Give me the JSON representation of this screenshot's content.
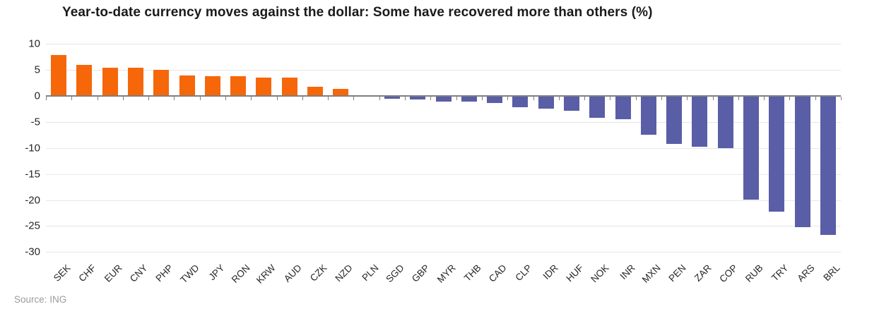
{
  "header": {
    "title": "Year-to-date currency moves against the dollar: Some have recovered more than others (%)"
  },
  "footer": {
    "source": "Source: ING"
  },
  "chart_data": {
    "type": "bar",
    "title": "Year-to-date currency moves against the dollar: Some have recovered more than others (%)",
    "xlabel": "",
    "ylabel": "",
    "categories": [
      "SEK",
      "CHF",
      "EUR",
      "CNY",
      "PHP",
      "TWD",
      "JPY",
      "RON",
      "KRW",
      "AUD",
      "CZK",
      "NZD",
      "PLN",
      "SGD",
      "GBP",
      "MYR",
      "THB",
      "CAD",
      "CLP",
      "IDR",
      "HUF",
      "NOK",
      "INR",
      "MXN",
      "PEN",
      "ZAR",
      "COP",
      "RUB",
      "TRY",
      "ARS",
      "BRL"
    ],
    "values": [
      7.8,
      5.9,
      5.4,
      5.4,
      5.0,
      4.0,
      3.8,
      3.8,
      3.5,
      3.5,
      1.7,
      1.4,
      -0.1,
      -0.5,
      -0.7,
      -1.1,
      -1.1,
      -1.4,
      -2.2,
      -2.4,
      -2.9,
      -4.2,
      -4.5,
      -7.5,
      -9.2,
      -9.7,
      -10.0,
      -19.9,
      -22.3,
      -25.2,
      -26.7
    ],
    "ylim": [
      -30,
      10
    ],
    "yticks": [
      10,
      5,
      0,
      -5,
      -10,
      -15,
      -20,
      -25,
      -30
    ],
    "grid": true,
    "legend": "none",
    "colors": {
      "positive": "#f6670a",
      "negative": "#5a5ea6",
      "gridline": "#e7e7e7",
      "axis": "#7f7f7f",
      "title": "#1a1a1a",
      "tick_text": "#262626",
      "source_text": "#9b9b9b"
    }
  }
}
